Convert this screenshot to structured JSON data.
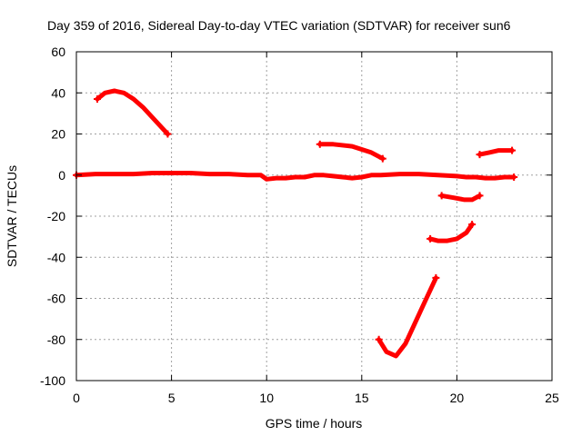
{
  "chart_data": {
    "type": "line",
    "title": "Day 359 of 2016, Sidereal Day-to-day VTEC variation (SDTVAR) for receiver sun6",
    "xlabel": "GPS time / hours",
    "ylabel": "SDTVAR / TECUs",
    "xlim": [
      0,
      25
    ],
    "ylim": [
      -100,
      60
    ],
    "xticks": [
      0,
      5,
      10,
      15,
      20,
      25
    ],
    "yticks": [
      -100,
      -80,
      -60,
      -40,
      -20,
      0,
      20,
      40,
      60
    ],
    "grid": true,
    "legend": "none",
    "color": "#ff0000",
    "series": [
      {
        "x": [
          0,
          1,
          2,
          3,
          4,
          5,
          6,
          7,
          8,
          9,
          9.7,
          10,
          10.5,
          11,
          11.5,
          12,
          12.5,
          13,
          13.5,
          14,
          14.5,
          15,
          15.5,
          16,
          17,
          18,
          19,
          20,
          20.5,
          21,
          21.5,
          22,
          22.5,
          23
        ],
        "y": [
          0,
          0.5,
          0.5,
          0.5,
          1,
          1,
          1,
          0.5,
          0.5,
          0,
          0,
          -2,
          -1.5,
          -1.5,
          -1,
          -1,
          0,
          0,
          -0.5,
          -1,
          -1.5,
          -1,
          0,
          0,
          0.5,
          0.5,
          0,
          -0.5,
          -1,
          -1,
          -1.5,
          -1.5,
          -1,
          -1
        ]
      },
      {
        "x": [
          1.1,
          1.5,
          2,
          2.5,
          3,
          3.5,
          4,
          4.5,
          4.8
        ],
        "y": [
          37,
          40,
          41,
          40,
          37,
          33,
          28,
          23,
          20
        ]
      },
      {
        "x": [
          12.8,
          13.5,
          14.5,
          15.5,
          16.1
        ],
        "y": [
          15,
          15,
          14,
          11,
          8
        ]
      },
      {
        "x": [
          15.9,
          16.3,
          16.8,
          17.3,
          17.8,
          18.3,
          18.9
        ],
        "y": [
          -80,
          -86,
          -88,
          -82,
          -72,
          -62,
          -50
        ]
      },
      {
        "x": [
          18.6,
          19,
          19.5,
          20,
          20.5,
          20.8
        ],
        "y": [
          -31,
          -32,
          -32,
          -31,
          -28,
          -24
        ]
      },
      {
        "x": [
          19.2,
          19.8,
          20.4,
          20.8,
          21.2
        ],
        "y": [
          -10,
          -11,
          -12,
          -12,
          -10
        ]
      },
      {
        "x": [
          21.2,
          21.7,
          22.2,
          22.9
        ],
        "y": [
          10,
          11,
          12,
          12
        ]
      }
    ]
  }
}
